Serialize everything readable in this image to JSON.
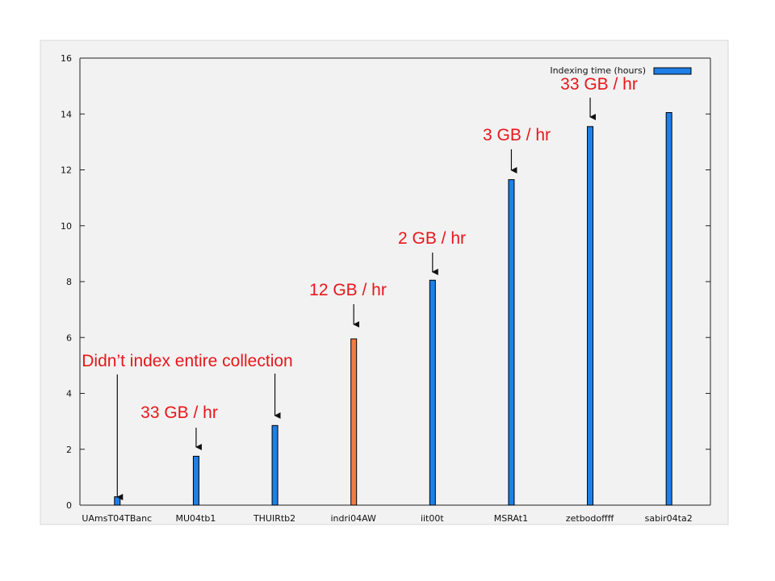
{
  "chart_data": {
    "type": "bar",
    "categories": [
      "UAmsT04TBanc",
      "MU04tb1",
      "THUIRtb2",
      "indri04AW",
      "iit00t",
      "MSRAt1",
      "zetbodoffff",
      "sabir04ta2"
    ],
    "series": [
      {
        "name": "Indexing time (hours)",
        "values": [
          0.3,
          1.75,
          2.85,
          5.95,
          8.05,
          11.65,
          13.55,
          14.05
        ],
        "colors": [
          "#1e7fe8",
          "#1e7fe8",
          "#1e7fe8",
          "#f07c45",
          "#1e7fe8",
          "#1e7fe8",
          "#1e7fe8",
          "#1e7fe8"
        ]
      }
    ],
    "title": "",
    "xlabel": "",
    "ylabel": "",
    "ylim": [
      0,
      16
    ],
    "yticks": [
      0,
      2,
      4,
      6,
      8,
      10,
      12,
      14,
      16
    ],
    "grid": false,
    "legend_position": "top-right",
    "annotations": [
      {
        "text": "Didn’t index entire collection",
        "category": "UAmsT04TBanc"
      },
      {
        "text": "33 GB / hr",
        "category": "MU04tb1"
      },
      {
        "text": "",
        "category": "THUIRtb2",
        "shares_label_with": "UAmsT04TBanc"
      },
      {
        "text": "12 GB / hr",
        "category": "indri04AW"
      },
      {
        "text": "2 GB / hr",
        "category": "iit00t"
      },
      {
        "text": "3 GB / hr",
        "category": "MSRAt1"
      },
      {
        "text": "33 GB / hr",
        "category": "zetbodoffff"
      }
    ],
    "colors": {
      "background": "#ffffff",
      "plot_frame": "#f2f2f2",
      "bar_default": "#1e7fe8",
      "bar_highlight": "#f07c45",
      "annotation_text": "#e8161b",
      "axis": "#222222"
    }
  }
}
